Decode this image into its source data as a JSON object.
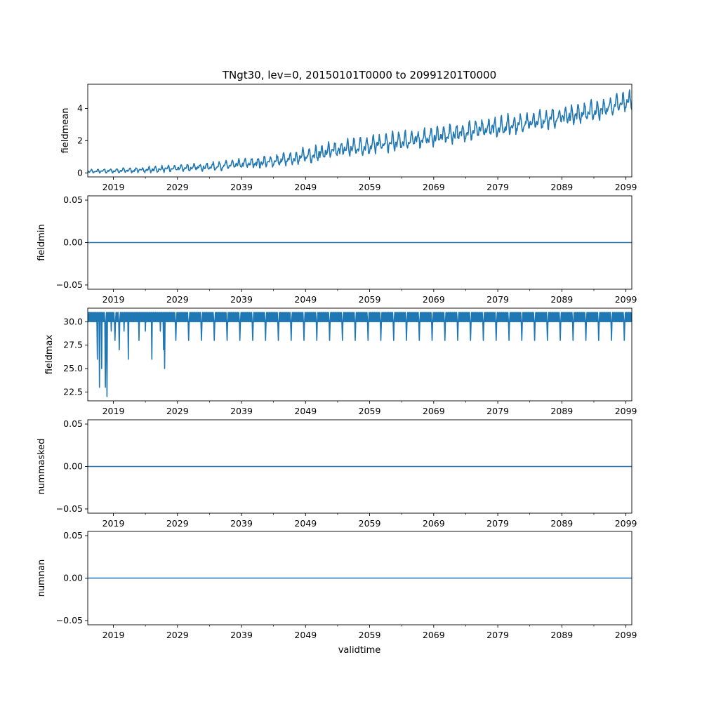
{
  "chart_data": {
    "type": "line",
    "title": "TNgt30, lev=0, 20150101T0000 to 20991201T0000",
    "xlabel": "validtime",
    "x_range": [
      "2015-01",
      "2099-12"
    ],
    "x_ticks": [
      "2019",
      "2029",
      "2039",
      "2049",
      "2059",
      "2069",
      "2079",
      "2089",
      "2099"
    ],
    "series_color": "#1f77b4",
    "panels": [
      {
        "name": "fieldmean",
        "ylabel": "fieldmean",
        "ylim": [
          -0.25,
          5.5
        ],
        "yticks": [
          0,
          2,
          4
        ],
        "ytick_labels": [
          "0",
          "2",
          "4"
        ],
        "description": "monthly series, seasonal cycle with rising trend",
        "trend": [
          [
            2015,
            0.08
          ],
          [
            2025,
            0.2
          ],
          [
            2035,
            0.4
          ],
          [
            2045,
            0.75
          ],
          [
            2055,
            1.5
          ],
          [
            2065,
            2.0
          ],
          [
            2075,
            2.6
          ],
          [
            2085,
            3.2
          ],
          [
            2095,
            3.9
          ],
          [
            2099.9,
            4.5
          ]
        ],
        "seasonal_amplitude": [
          [
            2015,
            0.12
          ],
          [
            2035,
            0.25
          ],
          [
            2045,
            0.4
          ],
          [
            2055,
            0.55
          ],
          [
            2075,
            0.6
          ],
          [
            2099.9,
            0.6
          ]
        ]
      },
      {
        "name": "fieldmin",
        "ylabel": "fieldmin",
        "ylim": [
          -0.055,
          0.055
        ],
        "yticks": [
          -0.05,
          0.0,
          0.05
        ],
        "ytick_labels": [
          "−0.05",
          "0.00",
          "0.05"
        ],
        "constant": 0.0
      },
      {
        "name": "fieldmax",
        "ylabel": "fieldmax",
        "ylim": [
          21.55,
          31.45
        ],
        "yticks": [
          22.5,
          25.0,
          27.5,
          30.0
        ],
        "ytick_labels": [
          "22.5",
          "25.0",
          "27.5",
          "30.0"
        ],
        "base_values": [
          30,
          31
        ],
        "dips": [
          {
            "year": 2016.5,
            "value": 26
          },
          {
            "year": 2016.8,
            "value": 23
          },
          {
            "year": 2017.1,
            "value": 25
          },
          {
            "year": 2017.7,
            "value": 23
          },
          {
            "year": 2017.95,
            "value": 22
          },
          {
            "year": 2018.6,
            "value": 29
          },
          {
            "year": 2019.2,
            "value": 28
          },
          {
            "year": 2019.9,
            "value": 27
          },
          {
            "year": 2020.6,
            "value": 29
          },
          {
            "year": 2021.3,
            "value": 26
          },
          {
            "year": 2022.1,
            "value": 30
          },
          {
            "year": 2023.0,
            "value": 28
          },
          {
            "year": 2024.0,
            "value": 29
          },
          {
            "year": 2025.0,
            "value": 26
          },
          {
            "year": 2026.3,
            "value": 29
          },
          {
            "year": 2026.8,
            "value": 27
          },
          {
            "year": 2026.95,
            "value": 25
          }
        ],
        "periodic_dip_value": 28,
        "periodic_dip_interval_years": 2,
        "periodic_dip_start": 2028.7
      },
      {
        "name": "nummasked",
        "ylabel": "nummasked",
        "ylim": [
          -0.055,
          0.055
        ],
        "yticks": [
          -0.05,
          0.0,
          0.05
        ],
        "ytick_labels": [
          "−0.05",
          "0.00",
          "0.05"
        ],
        "constant": 0.0
      },
      {
        "name": "numnan",
        "ylabel": "numnan",
        "ylim": [
          -0.055,
          0.055
        ],
        "yticks": [
          -0.05,
          0.0,
          0.05
        ],
        "ytick_labels": [
          "−0.05",
          "0.00",
          "0.05"
        ],
        "constant": 0.0
      }
    ]
  }
}
